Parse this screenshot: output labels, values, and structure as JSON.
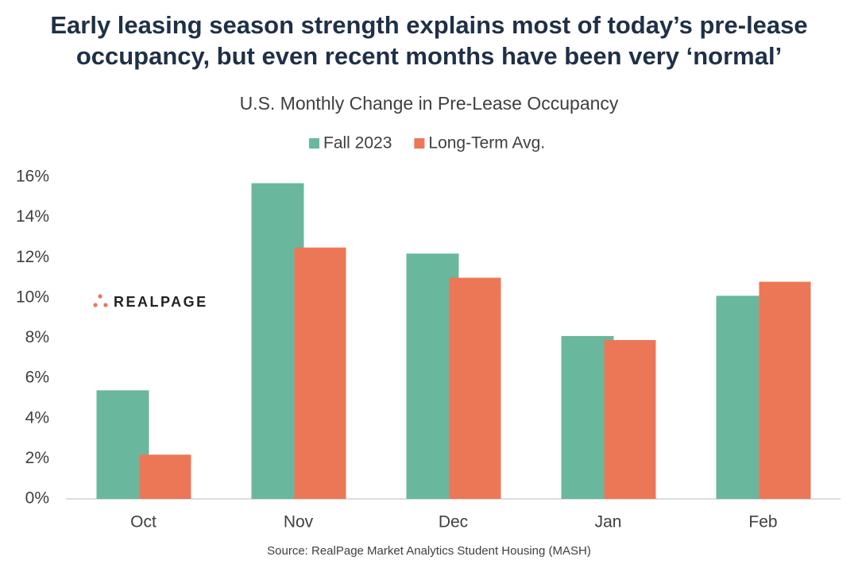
{
  "chart_data": {
    "type": "bar",
    "title": [
      "Early leasing season strength explains most of today’s pre-lease",
      "occupancy, but even recent months have been very ‘normal’"
    ],
    "subtitle": "U.S. Monthly Change in Pre-Lease Occupancy",
    "logo": "REALPAGE",
    "source": "Source: RealPage Market Analytics Student Housing (MASH)",
    "categories": [
      "Oct",
      "Nov",
      "Dec",
      "Jan",
      "Feb"
    ],
    "series": [
      {
        "name": "Fall 2023",
        "color": "#69b89e",
        "values": [
          5.4,
          15.7,
          12.2,
          8.1,
          10.1
        ]
      },
      {
        "name": "Long-Term Avg.",
        "color": "#ec7757",
        "values": [
          2.2,
          12.5,
          11.0,
          7.9,
          10.8
        ]
      }
    ],
    "ylim": [
      0,
      16
    ],
    "yticks": [
      {
        "value": 0,
        "label": "0%"
      },
      {
        "value": 2,
        "label": "2%"
      },
      {
        "value": 4,
        "label": "4%"
      },
      {
        "value": 6,
        "label": "6%"
      },
      {
        "value": 8,
        "label": "8%"
      },
      {
        "value": 10,
        "label": "10%"
      },
      {
        "value": 12,
        "label": "12%"
      },
      {
        "value": 14,
        "label": "14%"
      },
      {
        "value": 16,
        "label": "16%"
      }
    ],
    "legend": "top"
  }
}
